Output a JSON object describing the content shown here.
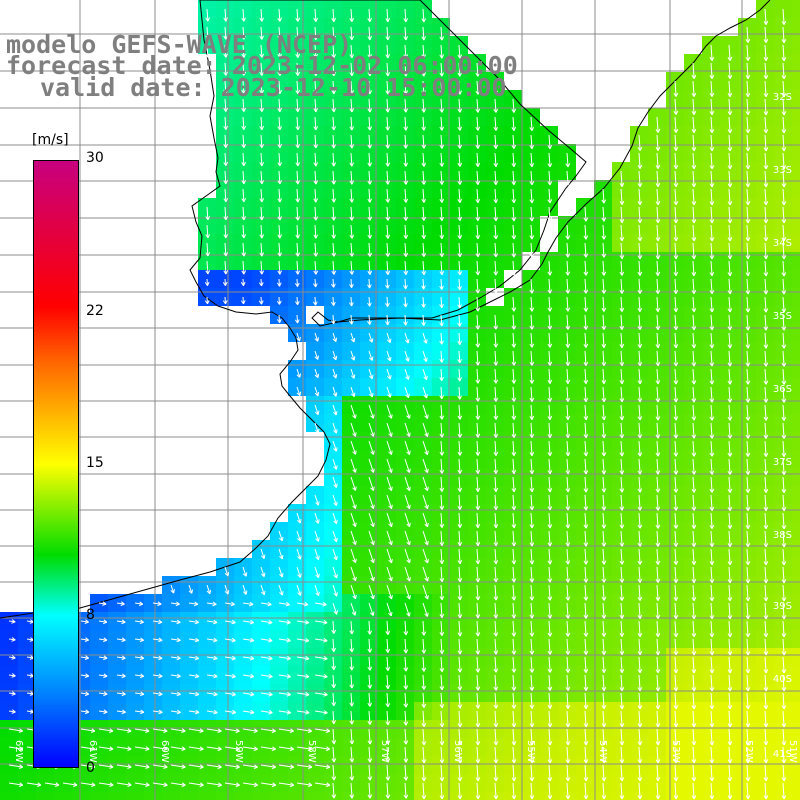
{
  "title": {
    "line1": "modelo GEFS-WAVE (NCEP)",
    "line2": "forecast date: 2023-12-02 06:00:00",
    "line3": "valid date: 2023-12-10 15:00:00"
  },
  "colorbar": {
    "unit": "[m/s]",
    "ticks": [
      "30",
      "22",
      "15",
      "8",
      "0"
    ],
    "tick_values": [
      30,
      22,
      15,
      8,
      0
    ],
    "min": 0,
    "max": 30,
    "colors": [
      "#0000ff",
      "#0080ff",
      "#00ffff",
      "#00dc00",
      "#ffff00",
      "#ff6400",
      "#ff0000",
      "#c8007f"
    ]
  },
  "map": {
    "lat_labels": [
      "32S",
      "33S",
      "34S",
      "35S",
      "36S",
      "37S",
      "38S",
      "39S",
      "40S",
      "41S"
    ],
    "lon_labels": [
      "62W",
      "61W",
      "60W",
      "59W",
      "58W",
      "57W",
      "56W",
      "55W",
      "54W",
      "53W",
      "52W",
      "51W"
    ],
    "lat_range": [
      -41.3,
      -31.1
    ],
    "lon_range": [
      -62.3,
      -51.3
    ],
    "land_color": "#ffffff",
    "grid_color": "#8c8c8c",
    "coast_color": "#000000",
    "arrow_color": "#ffffff",
    "wind_field_description_colors": {
      "rio_de_la_plata": "#0033ff",
      "coastal": "#00a0ff",
      "offshore": "#22e622",
      "south": "#c8f000"
    }
  }
}
